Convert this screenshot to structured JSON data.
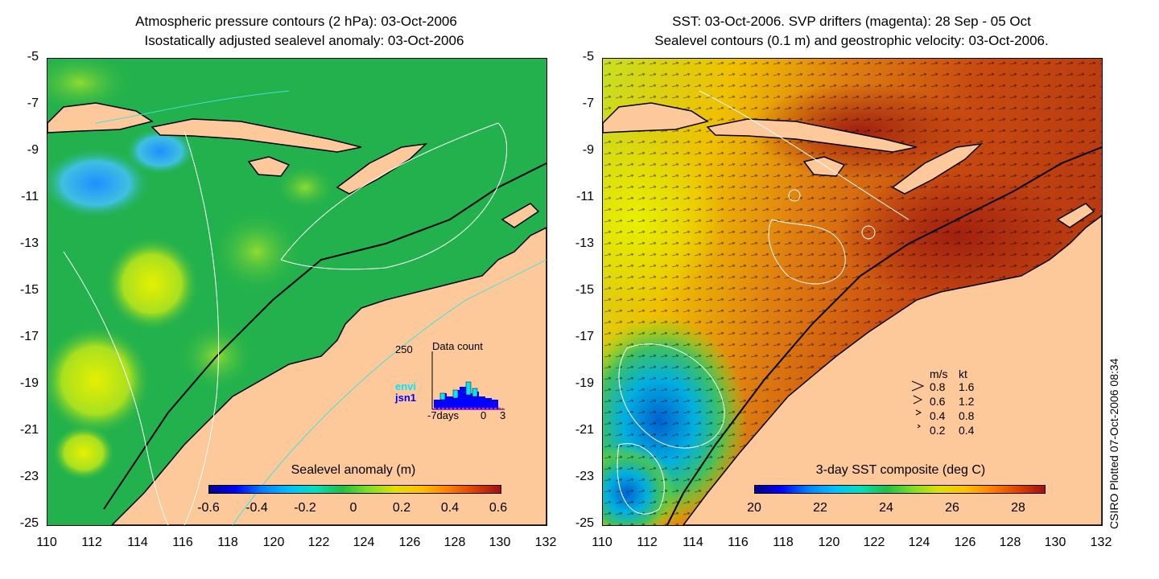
{
  "left_panel": {
    "title_line1": "Atmospheric pressure contours (2 hPa): 03-Oct-2006",
    "title_line2": "Isostatically adjusted sealevel anomaly: 03-Oct-2006",
    "colorbar_label": "Sealevel anomaly (m)",
    "colorbar_ticks": [
      "-0.6",
      "-0.4",
      "-0.2",
      "0",
      "0.2",
      "0.4",
      "0.6"
    ],
    "inset": {
      "title": "Data count",
      "ymax_label": "250",
      "series": [
        "envi",
        "jsn1"
      ],
      "xticks": [
        "-7days",
        "0",
        "3"
      ],
      "colors": {
        "envi": "#00e5ff",
        "jsn1": "#0000ff"
      }
    }
  },
  "right_panel": {
    "title_line1": "SST: 03-Oct-2006. SVP drifters (magenta): 28 Sep - 05 Oct",
    "title_line2": "Sealevel contours (0.1 m) and geostrophic velocity: 03-Oct-2006.",
    "colorbar_label": "3-day SST composite (deg C)",
    "colorbar_ticks": [
      "20",
      "22",
      "24",
      "26",
      "28"
    ],
    "velocity_legend": {
      "header_ms": "m/s",
      "header_kt": "kt",
      "rows": [
        {
          "ms": "0.8",
          "kt": "1.6"
        },
        {
          "ms": "0.6",
          "kt": "1.2"
        },
        {
          "ms": "0.4",
          "kt": "0.8"
        },
        {
          "ms": "0.2",
          "kt": "0.4"
        }
      ]
    }
  },
  "axes": {
    "y_ticks": [
      "-5",
      "-7",
      "-9",
      "-11",
      "-13",
      "-15",
      "-17",
      "-19",
      "-21",
      "-23",
      "-25"
    ],
    "x_ticks": [
      "110",
      "112",
      "114",
      "116",
      "118",
      "120",
      "122",
      "124",
      "126",
      "128",
      "130",
      "132"
    ]
  },
  "credit": "CSIRO Plotted 07-Oct-2006 08:34",
  "colors": {
    "land": "#fdc99b",
    "ocean_green": "#22b14c",
    "sst_warm": "#c0400f"
  }
}
